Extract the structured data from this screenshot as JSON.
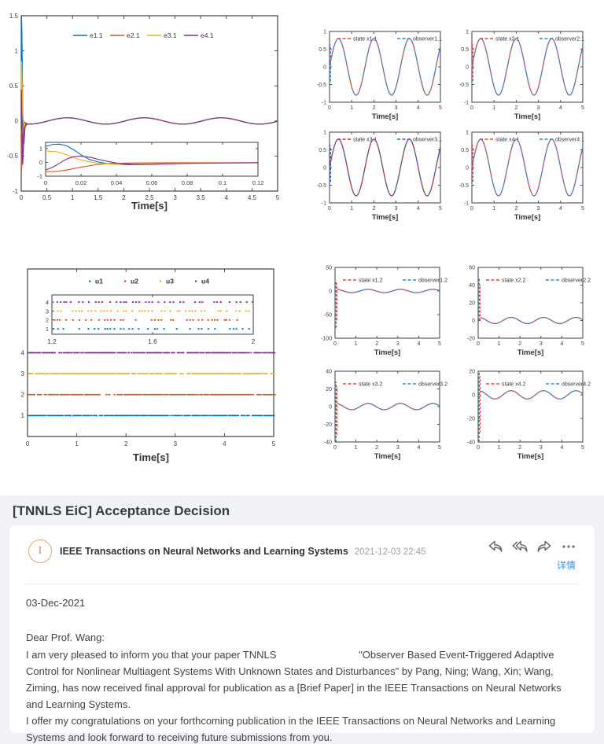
{
  "palette": {
    "matlab_blue": "#0072BD",
    "matlab_orange": "#D95319",
    "matlab_yellow": "#EDB120",
    "matlab_purple": "#7E2F8E",
    "state_red": "#e64540",
    "observer_blue": "#2e86d9",
    "axis": "#3f3f3f",
    "accent_blue": "#3a8ee6",
    "avatar_orange": "#e6a877"
  },
  "chart_data": [
    {
      "id": "tracking-errors",
      "type": "line",
      "xlabel": "Time[s]",
      "xlim": [
        0,
        5
      ],
      "ylim": [
        -1,
        1.5
      ],
      "xticks": [
        "0",
        "0.5",
        "1",
        "1.5",
        "2",
        "2.5",
        "3",
        "3.5",
        "4",
        "4.5",
        "5"
      ],
      "yticks": [
        "-1",
        "-0.5",
        "0",
        "0.5",
        "1",
        "1.5"
      ],
      "legend": [
        {
          "label": "e1.1",
          "color": "#0072BD"
        },
        {
          "label": "e2.1",
          "color": "#D95319"
        },
        {
          "label": "e3.1",
          "color": "#EDB120"
        },
        {
          "label": "e4.1",
          "color": "#7E2F8E"
        }
      ],
      "steady_oscillation": {
        "amplitude": 0.045,
        "period": 1.5,
        "peak_at": 0.9,
        "start": 0.12,
        "mean": 0
      },
      "transients": {
        "e1.1": [
          [
            0,
            0.25
          ],
          [
            0.004,
            1.5
          ],
          [
            0.012,
            1.28
          ],
          [
            0.022,
            0.6
          ],
          [
            0.032,
            0.05
          ],
          [
            0.042,
            -0.28
          ],
          [
            0.055,
            -0.3
          ],
          [
            0.07,
            -0.12
          ],
          [
            0.09,
            -0.04
          ],
          [
            0.12,
            -0.04
          ]
        ],
        "e2.1": [
          [
            0,
            -0.12
          ],
          [
            0.004,
            -0.72
          ],
          [
            0.012,
            -0.62
          ],
          [
            0.022,
            -0.42
          ],
          [
            0.034,
            -0.2
          ],
          [
            0.05,
            -0.06
          ],
          [
            0.07,
            -0.02
          ],
          [
            0.12,
            -0.04
          ]
        ],
        "e3.1": [
          [
            0,
            0.12
          ],
          [
            0.004,
            0.85
          ],
          [
            0.012,
            0.68
          ],
          [
            0.022,
            0.35
          ],
          [
            0.034,
            0.08
          ],
          [
            0.05,
            -0.08
          ],
          [
            0.07,
            -0.1
          ],
          [
            0.12,
            -0.04
          ]
        ],
        "e4.1": [
          [
            0,
            0.05
          ],
          [
            0.004,
            0.45
          ],
          [
            0.01,
            0.1
          ],
          [
            0.018,
            -0.3
          ],
          [
            0.028,
            -0.62
          ],
          [
            0.042,
            -0.4
          ],
          [
            0.058,
            -0.18
          ],
          [
            0.075,
            -0.07
          ],
          [
            0.12,
            -0.04
          ]
        ]
      },
      "inset": {
        "xlim": [
          0,
          0.12
        ],
        "ylim": [
          -1,
          1.45
        ],
        "xticks": [
          "0",
          "0.02",
          "0.04",
          "0.06",
          "0.08",
          "0.1",
          "0.12"
        ],
        "yticks": [
          "-1",
          "0",
          "1"
        ],
        "series": {
          "e1.1": [
            [
              0,
              1.15
            ],
            [
              0.004,
              1.3
            ],
            [
              0.008,
              1.32
            ],
            [
              0.012,
              1.2
            ],
            [
              0.016,
              0.9
            ],
            [
              0.02,
              0.55
            ],
            [
              0.025,
              0.2
            ],
            [
              0.03,
              0.02
            ],
            [
              0.035,
              -0.1
            ],
            [
              0.045,
              -0.18
            ],
            [
              0.055,
              -0.15
            ],
            [
              0.07,
              -0.08
            ],
            [
              0.09,
              -0.04
            ],
            [
              0.12,
              -0.03
            ]
          ],
          "e2.1": [
            [
              0,
              -0.68
            ],
            [
              0.006,
              -0.66
            ],
            [
              0.012,
              -0.55
            ],
            [
              0.02,
              -0.35
            ],
            [
              0.028,
              -0.18
            ],
            [
              0.036,
              -0.08
            ],
            [
              0.05,
              -0.04
            ],
            [
              0.07,
              -0.03
            ],
            [
              0.12,
              -0.03
            ]
          ],
          "e3.1": [
            [
              0,
              0.82
            ],
            [
              0.006,
              0.78
            ],
            [
              0.012,
              0.55
            ],
            [
              0.018,
              0.25
            ],
            [
              0.024,
              0.05
            ],
            [
              0.03,
              -0.08
            ],
            [
              0.04,
              -0.15
            ],
            [
              0.055,
              -0.12
            ],
            [
              0.07,
              -0.07
            ],
            [
              0.12,
              -0.03
            ]
          ],
          "e4.1": [
            [
              0,
              -0.55
            ],
            [
              0.004,
              -0.35
            ],
            [
              0.008,
              -0.05
            ],
            [
              0.012,
              0.25
            ],
            [
              0.016,
              0.42
            ],
            [
              0.02,
              0.45
            ],
            [
              0.026,
              0.35
            ],
            [
              0.032,
              0.15
            ],
            [
              0.04,
              -0.05
            ],
            [
              0.05,
              -0.15
            ],
            [
              0.06,
              -0.15
            ],
            [
              0.08,
              -0.08
            ],
            [
              0.1,
              -0.04
            ],
            [
              0.12,
              -0.03
            ]
          ]
        }
      }
    },
    {
      "id": "states-first-component",
      "type": "line",
      "subplots": [
        {
          "legend": [
            {
              "label": "state x1.1",
              "color": "#e64540"
            },
            {
              "label": "observer1.1",
              "color": "#2e86d9"
            }
          ],
          "xlabel": "Time[s]",
          "xlim": [
            0,
            5
          ],
          "ylim": [
            -1,
            1
          ],
          "xticks": [
            "0",
            "1",
            "2",
            "3",
            "4",
            "5"
          ],
          "yticks": [
            "-1",
            "-0.5",
            "0",
            "0.5",
            "1"
          ],
          "wave": {
            "amplitude": 0.8,
            "period": 1.6,
            "phase": 0
          }
        },
        {
          "legend": [
            {
              "label": "state x2.1",
              "color": "#e64540"
            },
            {
              "label": "observer2.1",
              "color": "#2e86d9"
            }
          ],
          "xlabel": "Time[s]",
          "xlim": [
            0,
            5
          ],
          "ylim": [
            -1,
            1
          ],
          "xticks": [
            "0",
            "1",
            "2",
            "3",
            "4",
            "5"
          ],
          "yticks": [
            "-1",
            "-0.5",
            "0",
            "0.5",
            "1"
          ],
          "wave": {
            "amplitude": 0.8,
            "period": 1.6,
            "phase": 0
          }
        },
        {
          "legend": [
            {
              "label": "state x3.1",
              "color": "#d42b26"
            },
            {
              "label": "observer3.1",
              "color": "#2565b0"
            }
          ],
          "xlabel": "Time[s]",
          "xlim": [
            0,
            5
          ],
          "ylim": [
            -1,
            1
          ],
          "xticks": [
            "0",
            "1",
            "2",
            "3",
            "4",
            "5"
          ],
          "yticks": [
            "-1",
            "-0.5",
            "0",
            "0.5",
            "1"
          ],
          "wave": {
            "amplitude": 0.8,
            "period": 1.6,
            "phase": 0
          }
        },
        {
          "legend": [
            {
              "label": "state x4.1",
              "color": "#e64540"
            },
            {
              "label": "observer4.1",
              "color": "#2e86d9"
            }
          ],
          "xlabel": "Time[s]",
          "xlim": [
            0,
            5
          ],
          "ylim": [
            -1,
            1
          ],
          "xticks": [
            "0",
            "1",
            "2",
            "3",
            "4",
            "5"
          ],
          "yticks": [
            "-1",
            "-0.5",
            "0",
            "0.5",
            "1"
          ],
          "wave": {
            "amplitude": 0.8,
            "period": 1.6,
            "phase": 0
          }
        }
      ]
    },
    {
      "id": "event-triggered-inputs",
      "type": "scatter",
      "xlabel": "Time[s]",
      "xlim": [
        0,
        5
      ],
      "ylim": [
        0,
        8
      ],
      "xticks": [
        "0",
        "1",
        "2",
        "3",
        "4",
        "5"
      ],
      "yticks": [
        "1",
        "2",
        "3",
        "4"
      ],
      "legend": [
        {
          "label": "u1",
          "color": "#0072BD"
        },
        {
          "label": "u2",
          "color": "#D95319"
        },
        {
          "label": "u3",
          "color": "#EDB120"
        },
        {
          "label": "u4",
          "color": "#7E2F8E"
        }
      ],
      "rows": [
        {
          "level": 1,
          "color": "#0072BD"
        },
        {
          "level": 2,
          "color": "#D95319"
        },
        {
          "level": 3,
          "color": "#EDB120"
        },
        {
          "level": 4,
          "color": "#7E2F8E"
        }
      ],
      "inset": {
        "xlim": [
          1.2,
          2
        ],
        "ylim": [
          0.4,
          4.8
        ],
        "xticks": [
          "1.2",
          "1.6",
          "2"
        ],
        "yticks": [
          "1",
          "2",
          "3",
          "4"
        ]
      }
    },
    {
      "id": "states-second-component",
      "type": "line",
      "subplots": [
        {
          "legend": [
            {
              "label": "state x1.2",
              "color": "#e64540"
            },
            {
              "label": "observer1.2",
              "color": "#2e86d9"
            }
          ],
          "xlabel": "Time[s]",
          "xlim": [
            0,
            5
          ],
          "ylim": [
            -100,
            50
          ],
          "xticks": [
            "0",
            "1",
            "2",
            "3",
            "4",
            "5"
          ],
          "yticks": [
            "-100",
            "-50",
            "0",
            "50"
          ],
          "spike": {
            "x": 0.05,
            "from": -78,
            "to": 20
          },
          "wave": {
            "amplitude": 3.5,
            "period": 1.55,
            "phase_rad": 1.47,
            "mean": 0
          }
        },
        {
          "legend": [
            {
              "label": "state x2.2",
              "color": "#e64540"
            },
            {
              "label": "observer2.2",
              "color": "#2e86d9"
            }
          ],
          "xlabel": "Time[s]",
          "xlim": [
            0,
            5
          ],
          "ylim": [
            -20,
            60
          ],
          "xticks": [
            "0",
            "1",
            "2",
            "3",
            "4",
            "5"
          ],
          "yticks": [
            "-20",
            "0",
            "20",
            "40",
            "60"
          ],
          "spike": {
            "x": 0.05,
            "from": 0,
            "to": 48
          },
          "wave": {
            "amplitude": 3.5,
            "period": 1.55,
            "phase_rad": 1.47,
            "mean": 0
          }
        },
        {
          "legend": [
            {
              "label": "state x3.2",
              "color": "#e64540"
            },
            {
              "label": "observer3.2",
              "color": "#2e86d9"
            }
          ],
          "xlabel": "Time[s]",
          "xlim": [
            0,
            5
          ],
          "ylim": [
            -40,
            40
          ],
          "xticks": [
            "0",
            "1",
            "2",
            "3",
            "4",
            "5"
          ],
          "yticks": [
            "-40",
            "-20",
            "0",
            "20",
            "40"
          ],
          "spike": {
            "x": 0.05,
            "from": -40,
            "to": 28
          },
          "wave": {
            "amplitude": 3.5,
            "period": 1.55,
            "phase_rad": 1.47,
            "mean": 0
          }
        },
        {
          "legend": [
            {
              "label": "state x4.2",
              "color": "#e64540"
            },
            {
              "label": "observer4.2",
              "color": "#2e86d9"
            }
          ],
          "xlabel": "Time[s]",
          "xlim": [
            0,
            5
          ],
          "ylim": [
            -40,
            20
          ],
          "xticks": [
            "0",
            "1",
            "2",
            "3",
            "4",
            "5"
          ],
          "yticks": [
            "-40",
            "-20",
            "0",
            "20"
          ],
          "spike": {
            "x": 0.05,
            "from": -40,
            "to": 20
          },
          "wave": {
            "amplitude": 3.5,
            "period": 1.55,
            "phase_rad": 1.47,
            "mean": 0
          }
        }
      ]
    }
  ],
  "email": {
    "subject": "[TNNLS EiC] Acceptance Decision",
    "sender": "IEEE Transactions on Neural Networks and Learning Systems",
    "datetime": "2021-12-03 22:45",
    "avatar_letter": "I",
    "actions": {
      "details_label": "详情"
    },
    "body": [
      "03-Dec-2021",
      "Dear Prof. Wang:",
      "I am very pleased to inform you that your paper TNNLS                             \"Observer Based Event-Triggered Adaptive Control for Nonlinear Multiagent Systems With Unknown States and Disturbances\" by Pang, Ning; Wang, Xin; Wang, Ziming, has now received final approval for publication as a [Brief Paper] in the IEEE Transactions on Neural Networks and Learning Systems.",
      "I offer my congratulations on your forthcoming publication in the IEEE Transactions on Neural Networks and Learning Systems and look forward to receiving future submissions from you."
    ]
  }
}
